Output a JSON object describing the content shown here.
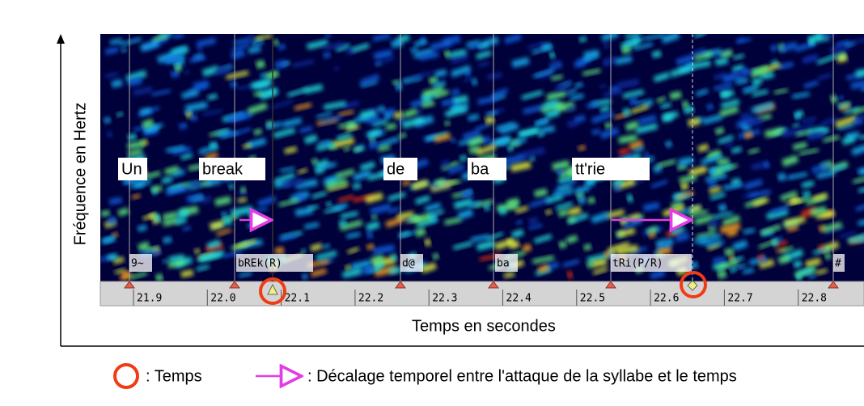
{
  "axes": {
    "y_label": "Fréquence en Hertz",
    "x_label": "Temps en secondes",
    "time_ticks": [
      "21.9",
      "22.0",
      "22.1",
      "22.2",
      "22.3",
      "22.4",
      "22.5",
      "22.6",
      "22.7",
      "22.8"
    ]
  },
  "words": [
    "Un",
    "break",
    "de",
    "ba",
    "tt'rie"
  ],
  "phonemes": [
    "9~",
    "bREk(R)",
    "d@",
    "ba",
    "tRi(P/R)",
    "#"
  ],
  "legend": {
    "circle": ": Temps",
    "arrow": ": Décalage temporel entre l'attaque de la syllabe et le temps"
  }
}
